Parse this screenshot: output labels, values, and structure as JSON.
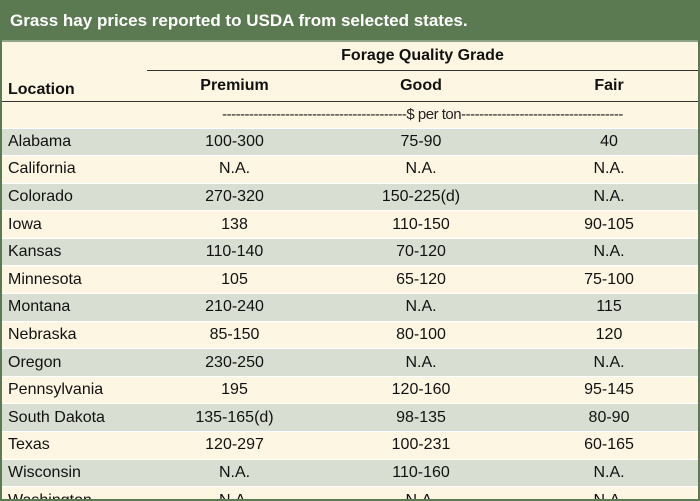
{
  "title": "Grass hay prices reported to USDA from selected states.",
  "header": {
    "group_label": "Forage Quality Grade",
    "location_label": "Location",
    "columns": [
      "Premium",
      "Good",
      "Fair"
    ],
    "unit_label": "-----------------------------------------$ per ton------------------------------------"
  },
  "rows": [
    {
      "state": "Alabama",
      "premium": "100-300",
      "good": "75-90",
      "fair": "40"
    },
    {
      "state": "California",
      "premium": "N.A.",
      "good": "N.A.",
      "fair": "N.A."
    },
    {
      "state": "Colorado",
      "premium": "270-320",
      "good": "150-225(d)",
      "fair": "N.A."
    },
    {
      "state": "Iowa",
      "premium": "138",
      "good": "110-150",
      "fair": "90-105"
    },
    {
      "state": "Kansas",
      "premium": "110-140",
      "good": "70-120",
      "fair": "N.A."
    },
    {
      "state": "Minnesota",
      "premium": "105",
      "good": "65-120",
      "fair": "75-100"
    },
    {
      "state": "Montana",
      "premium": "210-240",
      "good": "N.A.",
      "fair": "115"
    },
    {
      "state": "Nebraska",
      "premium": "85-150",
      "good": "80-100",
      "fair": "120"
    },
    {
      "state": "Oregon",
      "premium": "230-250",
      "good": "N.A.",
      "fair": "N.A."
    },
    {
      "state": "Pennsylvania",
      "premium": "195",
      "good": "120-160",
      "fair": "95-145"
    },
    {
      "state": "South Dakota",
      "premium": "135-165(d)",
      "good": "98-135",
      "fair": "80-90"
    },
    {
      "state": "Texas",
      "premium": "120-297",
      "good": "100-231",
      "fair": "60-165"
    },
    {
      "state": "Wisconsin",
      "premium": "N.A.",
      "good": "110-160",
      "fair": "N.A."
    },
    {
      "state": "Washington",
      "premium": "N.A.",
      "good": "N.A.",
      "fair": "N.A."
    }
  ],
  "colors": {
    "header_green": "#5b7a52",
    "band_green": "#d8dfd2",
    "band_cream": "#fdf6e2"
  }
}
